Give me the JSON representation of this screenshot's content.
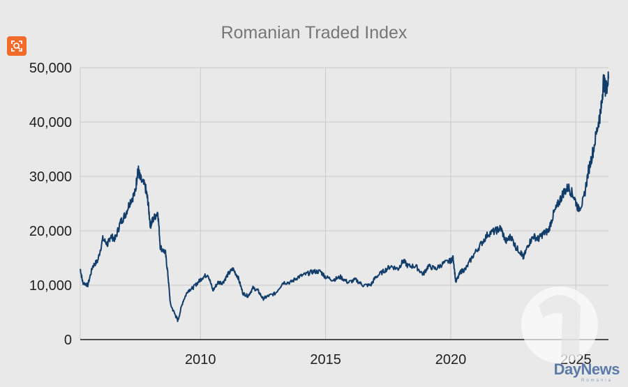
{
  "chart_data": {
    "type": "line",
    "title": "Romanian Traded Index",
    "xlabel": "",
    "ylabel": "",
    "xlim": [
      2005.2,
      2026.3
    ],
    "ylim": [
      0,
      50000
    ],
    "yticks": [
      0,
      10000,
      20000,
      30000,
      40000,
      50000
    ],
    "ytick_labels": [
      "0",
      "10,000",
      "20,000",
      "30,000",
      "40,000",
      "50,000"
    ],
    "xticks": [
      2010,
      2015,
      2020,
      2025
    ],
    "xtick_labels": [
      "2010",
      "2015",
      "2020",
      "2025"
    ],
    "grid": true,
    "color": "#123d6a",
    "series": [
      {
        "x": [
          2005.2,
          2005.3,
          2005.5,
          2005.7,
          2005.9,
          2006.1,
          2006.3,
          2006.4,
          2006.6,
          2006.8,
          2007.0,
          2007.2,
          2007.4,
          2007.5,
          2007.6,
          2007.8,
          2007.9,
          2008.0,
          2008.1,
          2008.3,
          2008.4,
          2008.6,
          2008.7,
          2008.8,
          2009.0,
          2009.1,
          2009.3,
          2009.5,
          2009.7,
          2009.9,
          2010.1,
          2010.3,
          2010.5,
          2010.7,
          2010.9,
          2011.1,
          2011.3,
          2011.5,
          2011.7,
          2011.9,
          2012.1,
          2012.3,
          2012.5,
          2012.7,
          2013.0,
          2013.3,
          2013.6,
          2013.9,
          2014.2,
          2014.5,
          2014.8,
          2015.0,
          2015.3,
          2015.6,
          2015.9,
          2016.2,
          2016.5,
          2016.8,
          2017.0,
          2017.3,
          2017.6,
          2017.9,
          2018.1,
          2018.3,
          2018.6,
          2018.9,
          2019.1,
          2019.4,
          2019.7,
          2020.0,
          2020.1,
          2020.2,
          2020.4,
          2020.6,
          2020.9,
          2021.2,
          2021.5,
          2021.8,
          2022.0,
          2022.2,
          2022.4,
          2022.6,
          2022.8,
          2022.9,
          2023.1,
          2023.3,
          2023.5,
          2023.7,
          2023.9,
          2024.1,
          2024.3,
          2024.5,
          2024.7,
          2024.9,
          2025.1,
          2025.3,
          2025.5,
          2025.7,
          2025.9,
          2026.0,
          2026.1,
          2026.2,
          2026.3
        ],
        "y": [
          13000,
          10500,
          10000,
          13500,
          14500,
          18500,
          17500,
          19000,
          18500,
          21500,
          23000,
          25500,
          27000,
          31500,
          29500,
          28000,
          25500,
          21000,
          22000,
          23500,
          17000,
          16000,
          12000,
          6500,
          4500,
          3500,
          7000,
          9000,
          9500,
          10500,
          11500,
          12000,
          9000,
          10500,
          10500,
          12000,
          13000,
          11500,
          8500,
          8000,
          9500,
          9000,
          7500,
          8000,
          8500,
          10500,
          10500,
          11500,
          12000,
          12500,
          12500,
          11500,
          11000,
          11500,
          10500,
          11000,
          10000,
          10000,
          11500,
          12500,
          13500,
          13000,
          14500,
          13500,
          13500,
          12000,
          13500,
          13000,
          14000,
          14500,
          15000,
          10500,
          12500,
          13000,
          15500,
          17500,
          19500,
          20000,
          20500,
          18000,
          19000,
          17000,
          16000,
          15000,
          17500,
          19000,
          18500,
          19500,
          20000,
          23000,
          25000,
          27000,
          28000,
          26500,
          24000,
          25500,
          31000,
          35000,
          40000,
          42000,
          47500,
          46000,
          48000
        ]
      }
    ]
  },
  "brand": {
    "name": "DayNews",
    "sub": "Romania"
  },
  "lens_button_icon": "lens-search-icon"
}
